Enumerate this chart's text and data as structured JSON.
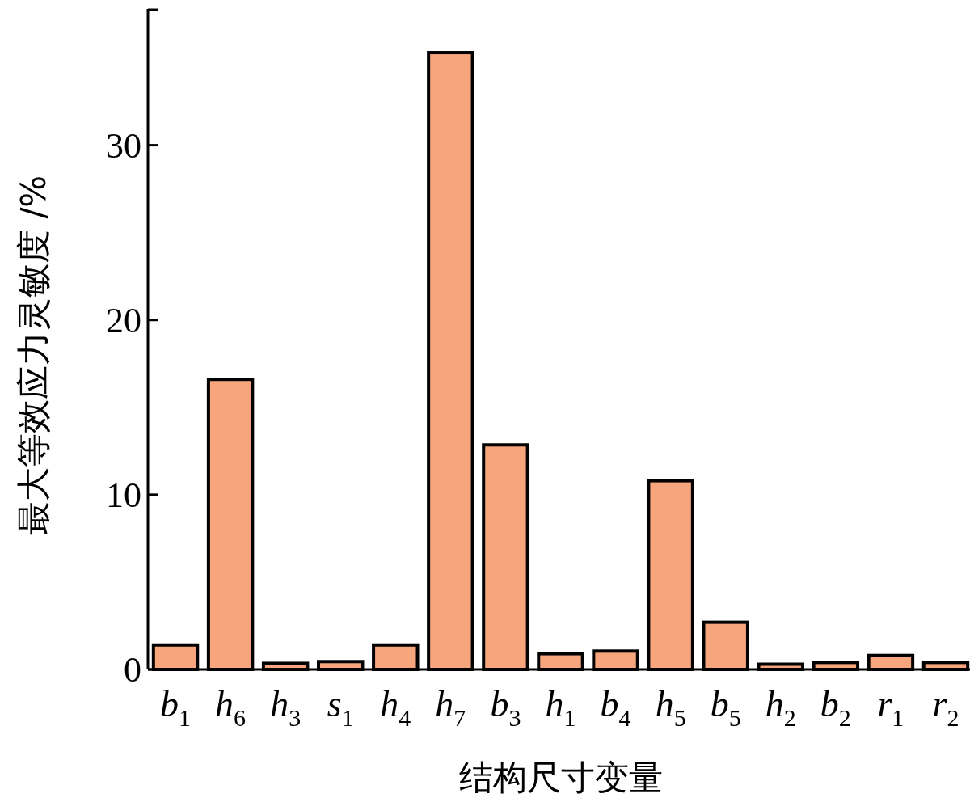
{
  "chart_data": {
    "type": "bar",
    "xlabel": "结构尺寸变量",
    "ylabel": "最大等效应力灵敏度 /%",
    "categories": [
      "b$_{1}$",
      "h$_{6}$",
      "h$_{3}$",
      "s$_{1}$",
      "h$_{4}$",
      "h$_{7}$",
      "b$_{3}$",
      "h$_{1}$",
      "b$_{4}$",
      "h$_{5}$",
      "b$_{5}$",
      "h$_{2}$",
      "b$_{2}$",
      "r$_{1}$",
      "r$_{2}$"
    ],
    "values": [
      1.4,
      16.6,
      0.35,
      0.45,
      1.4,
      35.3,
      12.85,
      0.9,
      1.05,
      10.8,
      2.7,
      0.3,
      0.4,
      0.8,
      0.4
    ],
    "color": "#f7a57c",
    "ylim": [
      0,
      37.8
    ],
    "yticks": [
      0,
      10,
      20,
      30
    ],
    "grid": false
  }
}
